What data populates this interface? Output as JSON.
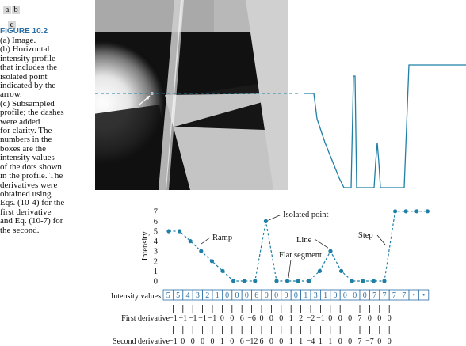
{
  "panel_labels": {
    "a": "a",
    "b": "b",
    "c": "c"
  },
  "caption": {
    "title": "FIGURE 10.2",
    "lines": [
      "(a) Image.",
      "(b) Horizontal",
      "intensity profile",
      "that includes the",
      "isolated point",
      "indicated by the",
      "arrow.",
      "(c) Subsampled",
      "profile; the dashes",
      "were added",
      "for clarity. The",
      "numbers in the",
      "boxes are the",
      "intensity values",
      "of the dots shown",
      "in the profile. The",
      "derivatives were",
      "obtained using",
      "Eqs. (10-4) for the",
      "first derivative",
      "and Eq. (10-7) for",
      "the second."
    ]
  },
  "colors": {
    "accent": "#2a6fa6",
    "profile": "#1f7fa6"
  },
  "chart_data": {
    "type": "line",
    "ylabel": "Intensity",
    "yticks": [
      "0",
      "1",
      "2",
      "3",
      "4",
      "5",
      "6",
      "7"
    ],
    "ylim": [
      0,
      7
    ],
    "x": [
      0,
      1,
      2,
      3,
      4,
      5,
      6,
      7,
      8,
      9,
      10,
      11,
      12,
      13,
      14,
      15,
      16,
      17,
      18,
      19,
      20,
      21,
      22,
      23,
      24
    ],
    "values": [
      5,
      5,
      4,
      3,
      2,
      1,
      0,
      0,
      0,
      6,
      0,
      0,
      0,
      0,
      1,
      3,
      1,
      0,
      0,
      0,
      0,
      7,
      7,
      7,
      7
    ],
    "annotations": {
      "isolated_point": "Isolated point",
      "ramp": "Ramp",
      "line": "Line",
      "flat_segment": "Flat segment",
      "step": "Step"
    }
  },
  "table": {
    "label": "Intensity values",
    "values": [
      "5",
      "5",
      "4",
      "3",
      "2",
      "1",
      "0",
      "0",
      "0",
      "6",
      "0",
      "0",
      "0",
      "0",
      "1",
      "3",
      "1",
      "0",
      "0",
      "0",
      "0",
      "7",
      "7",
      "7",
      "7",
      "•",
      "•"
    ],
    "first_derivative_label": "First derivative",
    "first_derivative": [
      "−1",
      "−1",
      "−1",
      "−1",
      "−1",
      "0",
      "0",
      "6",
      "−6",
      "0",
      "0",
      "0",
      "1",
      "2",
      "−2",
      "−1",
      "0",
      "0",
      "0",
      "7",
      "0",
      "0",
      "0"
    ],
    "second_derivative_label": "Second derivative",
    "second_derivative": [
      "−1",
      "0",
      "0",
      "0",
      "0",
      "1",
      "0",
      "6",
      "−12",
      "6",
      "0",
      "0",
      "1",
      "1",
      "−4",
      "1",
      "1",
      "0",
      "0",
      "7",
      "−7",
      "0",
      "0"
    ]
  }
}
